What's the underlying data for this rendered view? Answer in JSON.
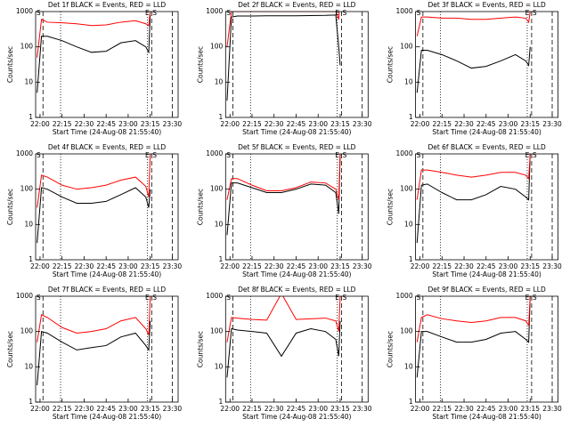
{
  "chart_data": [
    {
      "type": "line",
      "title": "Det 1f BLACK = Events, RED = LLD",
      "xlabel": "Start Time (24-Aug-08 21:55:40)",
      "ylabel": "Counts/sec",
      "log_y": true,
      "x": [
        "21:58",
        "22:01",
        "22:05",
        "22:15",
        "22:25",
        "22:35",
        "22:45",
        "22:55",
        "23:05",
        "23:12",
        "23:14",
        "23:15"
      ],
      "series": [
        {
          "color": "#000000",
          "values": [
            5,
            200,
            200,
            150,
            100,
            70,
            75,
            130,
            150,
            100,
            70,
            800
          ]
        },
        {
          "color": "#ff0000",
          "values": [
            50,
            600,
            500,
            480,
            450,
            400,
            420,
            500,
            550,
            450,
            400,
            1000
          ]
        }
      ],
      "xlim": [
        "21:57",
        "23:34"
      ],
      "xticks": [
        "22:00",
        "22:15",
        "22:30",
        "22:45",
        "23:00",
        "23:15",
        "23:30"
      ],
      "ylim": [
        1,
        1000
      ],
      "yticks": [
        1,
        10,
        100,
        1000
      ],
      "vlines": [
        {
          "x": "22:02",
          "style": "dashed"
        },
        {
          "x": "22:14",
          "style": "dotted"
        },
        {
          "x": "23:13",
          "style": "dotted"
        },
        {
          "x": "23:16",
          "style": "dashed"
        },
        {
          "x": "23:30",
          "style": "dashed"
        }
      ],
      "annotations": [
        {
          "text": "S",
          "x": "21:59"
        },
        {
          "text": "E",
          "x": "23:13"
        },
        {
          "text": "S",
          "x": "23:18"
        }
      ]
    },
    {
      "type": "line",
      "title": "Det 2f BLACK = Events, RED = LLD",
      "xlabel": "Start Time (24-Aug-08 21:55:40)",
      "ylabel": "Counts/sec",
      "log_y": true,
      "x": [
        "21:58",
        "22:01",
        "22:05",
        "22:15",
        "22:25",
        "22:35",
        "22:45",
        "22:55",
        "23:05",
        "23:12",
        "23:14",
        "23:15"
      ],
      "series": [
        {
          "color": "#000000",
          "values": [
            3,
            700,
            750,
            750,
            760,
            760,
            760,
            770,
            780,
            800,
            100,
            30
          ]
        },
        {
          "color": "#ff0000",
          "values": [
            100,
            1000,
            1000,
            1000,
            1000,
            1000,
            1000,
            1000,
            1000,
            1000,
            600,
            2500
          ]
        }
      ],
      "xlim": [
        "21:57",
        "23:34"
      ],
      "xticks": [
        "22:00",
        "22:15",
        "22:30",
        "22:45",
        "23:00",
        "23:15",
        "23:30"
      ],
      "ylim": [
        1,
        1000
      ],
      "yticks": [
        1,
        10,
        100,
        1000
      ],
      "vlines": [
        {
          "x": "22:02",
          "style": "dashed"
        },
        {
          "x": "22:14",
          "style": "dotted"
        },
        {
          "x": "23:13",
          "style": "dotted"
        },
        {
          "x": "23:16",
          "style": "dashed"
        },
        {
          "x": "23:30",
          "style": "dashed"
        }
      ],
      "annotations": [
        {
          "text": "S",
          "x": "21:59"
        },
        {
          "text": "E",
          "x": "23:13"
        },
        {
          "text": "S",
          "x": "23:18"
        }
      ]
    },
    {
      "type": "line",
      "title": "Det 3f BLACK = Events, RED = LLD",
      "xlabel": "Start Time (24-Aug-08 21:55:40)",
      "ylabel": "Counts/sec",
      "log_y": true,
      "x": [
        "21:58",
        "22:01",
        "22:05",
        "22:15",
        "22:25",
        "22:35",
        "22:45",
        "22:55",
        "23:05",
        "23:12",
        "23:14",
        "23:15"
      ],
      "series": [
        {
          "color": "#000000",
          "values": [
            5,
            80,
            80,
            60,
            40,
            25,
            28,
            40,
            60,
            40,
            30,
            100
          ]
        },
        {
          "color": "#ff0000",
          "values": [
            200,
            700,
            700,
            650,
            650,
            600,
            600,
            650,
            700,
            650,
            500,
            1000
          ]
        }
      ],
      "xlim": [
        "21:57",
        "23:34"
      ],
      "xticks": [
        "22:00",
        "22:15",
        "22:30",
        "22:45",
        "23:00",
        "23:15",
        "23:30"
      ],
      "ylim": [
        1,
        1000
      ],
      "yticks": [
        1,
        10,
        100,
        1000
      ],
      "vlines": [
        {
          "x": "22:02",
          "style": "dashed"
        },
        {
          "x": "22:14",
          "style": "dotted"
        },
        {
          "x": "23:13",
          "style": "dotted"
        },
        {
          "x": "23:16",
          "style": "dashed"
        },
        {
          "x": "23:30",
          "style": "dashed"
        }
      ],
      "annotations": [
        {
          "text": "S",
          "x": "21:59"
        },
        {
          "text": "E",
          "x": "23:13"
        },
        {
          "text": "S",
          "x": "23:18"
        }
      ]
    },
    {
      "type": "line",
      "title": "Det 4f BLACK = Events, RED = LLD",
      "xlabel": "Start Time (24-Aug-08 21:55:40)",
      "ylabel": "Counts/sec",
      "log_y": true,
      "x": [
        "21:58",
        "22:01",
        "22:05",
        "22:15",
        "22:25",
        "22:35",
        "22:45",
        "22:55",
        "23:05",
        "23:12",
        "23:14",
        "23:15"
      ],
      "series": [
        {
          "color": "#000000",
          "values": [
            3,
            110,
            100,
            60,
            40,
            40,
            45,
            70,
            110,
            60,
            30,
            100
          ]
        },
        {
          "color": "#ff0000",
          "values": [
            30,
            250,
            220,
            130,
            100,
            110,
            130,
            180,
            220,
            120,
            60,
            1000
          ]
        }
      ],
      "xlim": [
        "21:57",
        "23:34"
      ],
      "xticks": [
        "22:00",
        "22:15",
        "22:30",
        "22:45",
        "23:00",
        "23:15",
        "23:30"
      ],
      "ylim": [
        1,
        1000
      ],
      "yticks": [
        1,
        10,
        100,
        1000
      ],
      "vlines": [
        {
          "x": "22:02",
          "style": "dashed"
        },
        {
          "x": "22:14",
          "style": "dotted"
        },
        {
          "x": "23:13",
          "style": "dotted"
        },
        {
          "x": "23:16",
          "style": "dashed"
        },
        {
          "x": "23:30",
          "style": "dashed"
        }
      ],
      "annotations": [
        {
          "text": "S",
          "x": "21:59"
        },
        {
          "text": "E",
          "x": "23:13"
        },
        {
          "text": "S",
          "x": "23:18"
        }
      ]
    },
    {
      "type": "line",
      "title": "Det 5f BLACK = Events, RED = LLD",
      "xlabel": "Start Time (24-Aug-08 21:55:40)",
      "ylabel": "Counts/sec",
      "log_y": true,
      "x": [
        "21:58",
        "22:01",
        "22:05",
        "22:15",
        "22:25",
        "22:35",
        "22:45",
        "22:55",
        "23:05",
        "23:12",
        "23:14",
        "23:15"
      ],
      "series": [
        {
          "color": "#000000",
          "values": [
            5,
            150,
            150,
            110,
            80,
            80,
            100,
            140,
            130,
            80,
            20,
            1000
          ]
        },
        {
          "color": "#ff0000",
          "values": [
            50,
            200,
            200,
            130,
            90,
            90,
            110,
            160,
            150,
            100,
            50,
            1000
          ]
        }
      ],
      "xlim": [
        "21:57",
        "23:34"
      ],
      "xticks": [
        "22:00",
        "22:15",
        "22:30",
        "22:45",
        "23:00",
        "23:15",
        "23:30"
      ],
      "ylim": [
        1,
        1000
      ],
      "yticks": [
        1,
        10,
        100,
        1000
      ],
      "vlines": [
        {
          "x": "22:02",
          "style": "dashed"
        },
        {
          "x": "22:14",
          "style": "dotted"
        },
        {
          "x": "23:13",
          "style": "dotted"
        },
        {
          "x": "23:16",
          "style": "dashed"
        },
        {
          "x": "23:30",
          "style": "dashed"
        }
      ],
      "annotations": [
        {
          "text": "S",
          "x": "21:59"
        },
        {
          "text": "E",
          "x": "23:13"
        },
        {
          "text": "S",
          "x": "23:18"
        }
      ]
    },
    {
      "type": "line",
      "title": "Det 6f BLACK = Events, RED = LLD",
      "xlabel": "Start Time (24-Aug-08 21:55:40)",
      "ylabel": "Counts/sec",
      "log_y": true,
      "x": [
        "21:58",
        "22:01",
        "22:05",
        "22:15",
        "22:25",
        "22:35",
        "22:45",
        "22:55",
        "23:05",
        "23:12",
        "23:14",
        "23:15"
      ],
      "series": [
        {
          "color": "#000000",
          "values": [
            3,
            130,
            140,
            80,
            50,
            50,
            70,
            120,
            100,
            60,
            50,
            1000
          ]
        },
        {
          "color": "#ff0000",
          "values": [
            50,
            350,
            350,
            300,
            250,
            220,
            250,
            300,
            300,
            250,
            200,
            1000
          ]
        }
      ],
      "xlim": [
        "21:57",
        "23:34"
      ],
      "xticks": [
        "22:00",
        "22:15",
        "22:30",
        "22:45",
        "23:00",
        "23:15",
        "23:30"
      ],
      "ylim": [
        1,
        1000
      ],
      "yticks": [
        1,
        10,
        100,
        1000
      ],
      "vlines": [
        {
          "x": "22:02",
          "style": "dashed"
        },
        {
          "x": "22:14",
          "style": "dotted"
        },
        {
          "x": "23:13",
          "style": "dotted"
        },
        {
          "x": "23:16",
          "style": "dashed"
        },
        {
          "x": "23:30",
          "style": "dashed"
        }
      ],
      "annotations": [
        {
          "text": "S",
          "x": "21:59"
        },
        {
          "text": "E",
          "x": "23:13"
        },
        {
          "text": "S",
          "x": "23:18"
        }
      ]
    },
    {
      "type": "line",
      "title": "Det 7f BLACK = Events, RED = LLD",
      "xlabel": "Start Time (24-Aug-08 21:55:40)",
      "ylabel": "Counts/sec",
      "log_y": true,
      "x": [
        "21:58",
        "22:01",
        "22:05",
        "22:15",
        "22:25",
        "22:35",
        "22:45",
        "22:55",
        "23:05",
        "23:12",
        "23:14",
        "23:15"
      ],
      "series": [
        {
          "color": "#000000",
          "values": [
            3,
            100,
            90,
            50,
            30,
            35,
            40,
            70,
            90,
            40,
            30,
            200
          ]
        },
        {
          "color": "#ff0000",
          "values": [
            50,
            300,
            250,
            130,
            90,
            100,
            120,
            200,
            250,
            120,
            80,
            1000
          ]
        }
      ],
      "xlim": [
        "21:57",
        "23:34"
      ],
      "xticks": [
        "22:00",
        "22:15",
        "22:30",
        "22:45",
        "23:00",
        "23:15",
        "23:30"
      ],
      "ylim": [
        1,
        1000
      ],
      "yticks": [
        1,
        10,
        100,
        1000
      ],
      "vlines": [
        {
          "x": "22:02",
          "style": "dashed"
        },
        {
          "x": "22:14",
          "style": "dotted"
        },
        {
          "x": "23:13",
          "style": "dotted"
        },
        {
          "x": "23:16",
          "style": "dashed"
        },
        {
          "x": "23:30",
          "style": "dashed"
        }
      ],
      "annotations": [
        {
          "text": "S",
          "x": "21:59"
        },
        {
          "text": "E",
          "x": "23:13"
        },
        {
          "text": "S",
          "x": "23:18"
        }
      ]
    },
    {
      "type": "line",
      "title": "Det 8f BLACK = Events, RED = LLD",
      "xlabel": "Start Time (24-Aug-08 21:55:40)",
      "ylabel": "Counts/sec",
      "log_y": true,
      "x": [
        "21:58",
        "22:01",
        "22:05",
        "22:15",
        "22:25",
        "22:35",
        "22:45",
        "22:55",
        "23:05",
        "23:12",
        "23:14",
        "23:15"
      ],
      "series": [
        {
          "color": "#000000",
          "values": [
            5,
            120,
            110,
            100,
            90,
            20,
            90,
            120,
            100,
            60,
            20,
            200
          ]
        },
        {
          "color": "#ff0000",
          "values": [
            50,
            250,
            240,
            220,
            210,
            1200,
            220,
            230,
            240,
            200,
            100,
            1000
          ]
        }
      ],
      "xlim": [
        "21:57",
        "23:34"
      ],
      "xticks": [
        "22:00",
        "22:15",
        "22:30",
        "22:45",
        "23:00",
        "23:15",
        "23:30"
      ],
      "ylim": [
        1,
        1000
      ],
      "yticks": [
        1,
        10,
        100,
        1000
      ],
      "vlines": [
        {
          "x": "22:02",
          "style": "dashed"
        },
        {
          "x": "22:14",
          "style": "dotted"
        },
        {
          "x": "23:13",
          "style": "dotted"
        },
        {
          "x": "23:16",
          "style": "dashed"
        },
        {
          "x": "23:30",
          "style": "dashed"
        }
      ],
      "annotations": [
        {
          "text": "S",
          "x": "21:59"
        },
        {
          "text": "E",
          "x": "23:13"
        },
        {
          "text": "S",
          "x": "23:18"
        }
      ]
    },
    {
      "type": "line",
      "title": "Det 9f BLACK = Events, RED = LLD",
      "xlabel": "Start Time (24-Aug-08 21:55:40)",
      "ylabel": "Counts/sec",
      "log_y": true,
      "x": [
        "21:58",
        "22:01",
        "22:05",
        "22:15",
        "22:25",
        "22:35",
        "22:45",
        "22:55",
        "23:05",
        "23:12",
        "23:14",
        "23:15"
      ],
      "series": [
        {
          "color": "#000000",
          "values": [
            5,
            100,
            100,
            70,
            50,
            50,
            60,
            90,
            100,
            60,
            50,
            1000
          ]
        },
        {
          "color": "#ff0000",
          "values": [
            50,
            250,
            300,
            230,
            200,
            180,
            200,
            250,
            250,
            200,
            150,
            1000
          ]
        }
      ],
      "xlim": [
        "21:57",
        "23:34"
      ],
      "xticks": [
        "22:00",
        "22:15",
        "22:30",
        "22:45",
        "23:00",
        "23:15",
        "23:30"
      ],
      "ylim": [
        1,
        1000
      ],
      "yticks": [
        1,
        10,
        100,
        1000
      ],
      "vlines": [
        {
          "x": "22:02",
          "style": "dashed"
        },
        {
          "x": "22:14",
          "style": "dotted"
        },
        {
          "x": "23:13",
          "style": "dotted"
        },
        {
          "x": "23:16",
          "style": "dashed"
        },
        {
          "x": "23:30",
          "style": "dashed"
        }
      ],
      "annotations": [
        {
          "text": "S",
          "x": "21:59"
        },
        {
          "text": "E",
          "x": "23:13"
        },
        {
          "text": "S",
          "x": "23:18"
        }
      ]
    }
  ]
}
